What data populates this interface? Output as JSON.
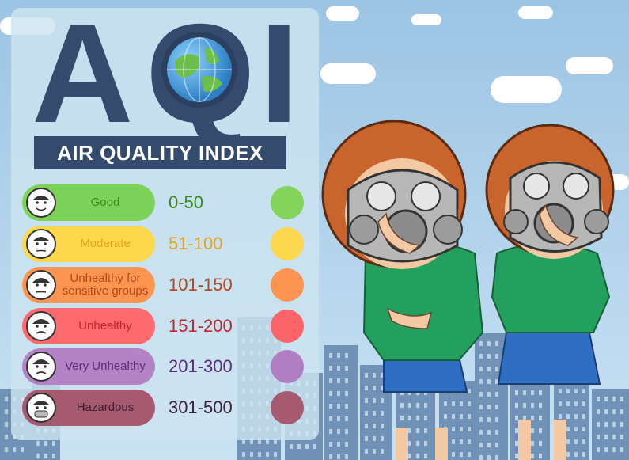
{
  "logo": {
    "letter_a": "A",
    "letter_q": "Q",
    "letter_i": "I"
  },
  "banner": "AIR QUALITY INDEX",
  "levels": [
    {
      "label": "Good",
      "range": "0-50",
      "pill_color": "#7dd35a",
      "text_color": "#3a8a1e",
      "dot_color": "#84d45c",
      "face": "face-happy-icon"
    },
    {
      "label": "Moderate",
      "range": "51-100",
      "pill_color": "#fcd94a",
      "text_color": "#e8a31c",
      "dot_color": "#fbd84d",
      "face": "face-neutral-icon"
    },
    {
      "label": "Unhealthy for sensitive groups",
      "range": "101-150",
      "pill_color": "#fd9550",
      "text_color": "#b5451b",
      "dot_color": "#fc9452",
      "face": "face-uneasy-icon"
    },
    {
      "label": "Unhealthy",
      "range": "151-200",
      "pill_color": "#fc6a6e",
      "text_color": "#c0262f",
      "dot_color": "#fc6469",
      "face": "face-sad-icon"
    },
    {
      "label": "Very Unhealthy",
      "range": "201-300",
      "pill_color": "#b383c6",
      "text_color": "#5d2a78",
      "dot_color": "#b07fc3",
      "face": "face-sick-icon"
    },
    {
      "label": "Hazardous",
      "range": "301-500",
      "pill_color": "#a55a70",
      "text_color": "#3b1f35",
      "dot_color": "#a55a70",
      "face": "face-mask-icon"
    }
  ],
  "colors": {
    "panel_title": "#354b6e",
    "sky": "#9cc4e4",
    "buildings": "#6f92b6"
  }
}
